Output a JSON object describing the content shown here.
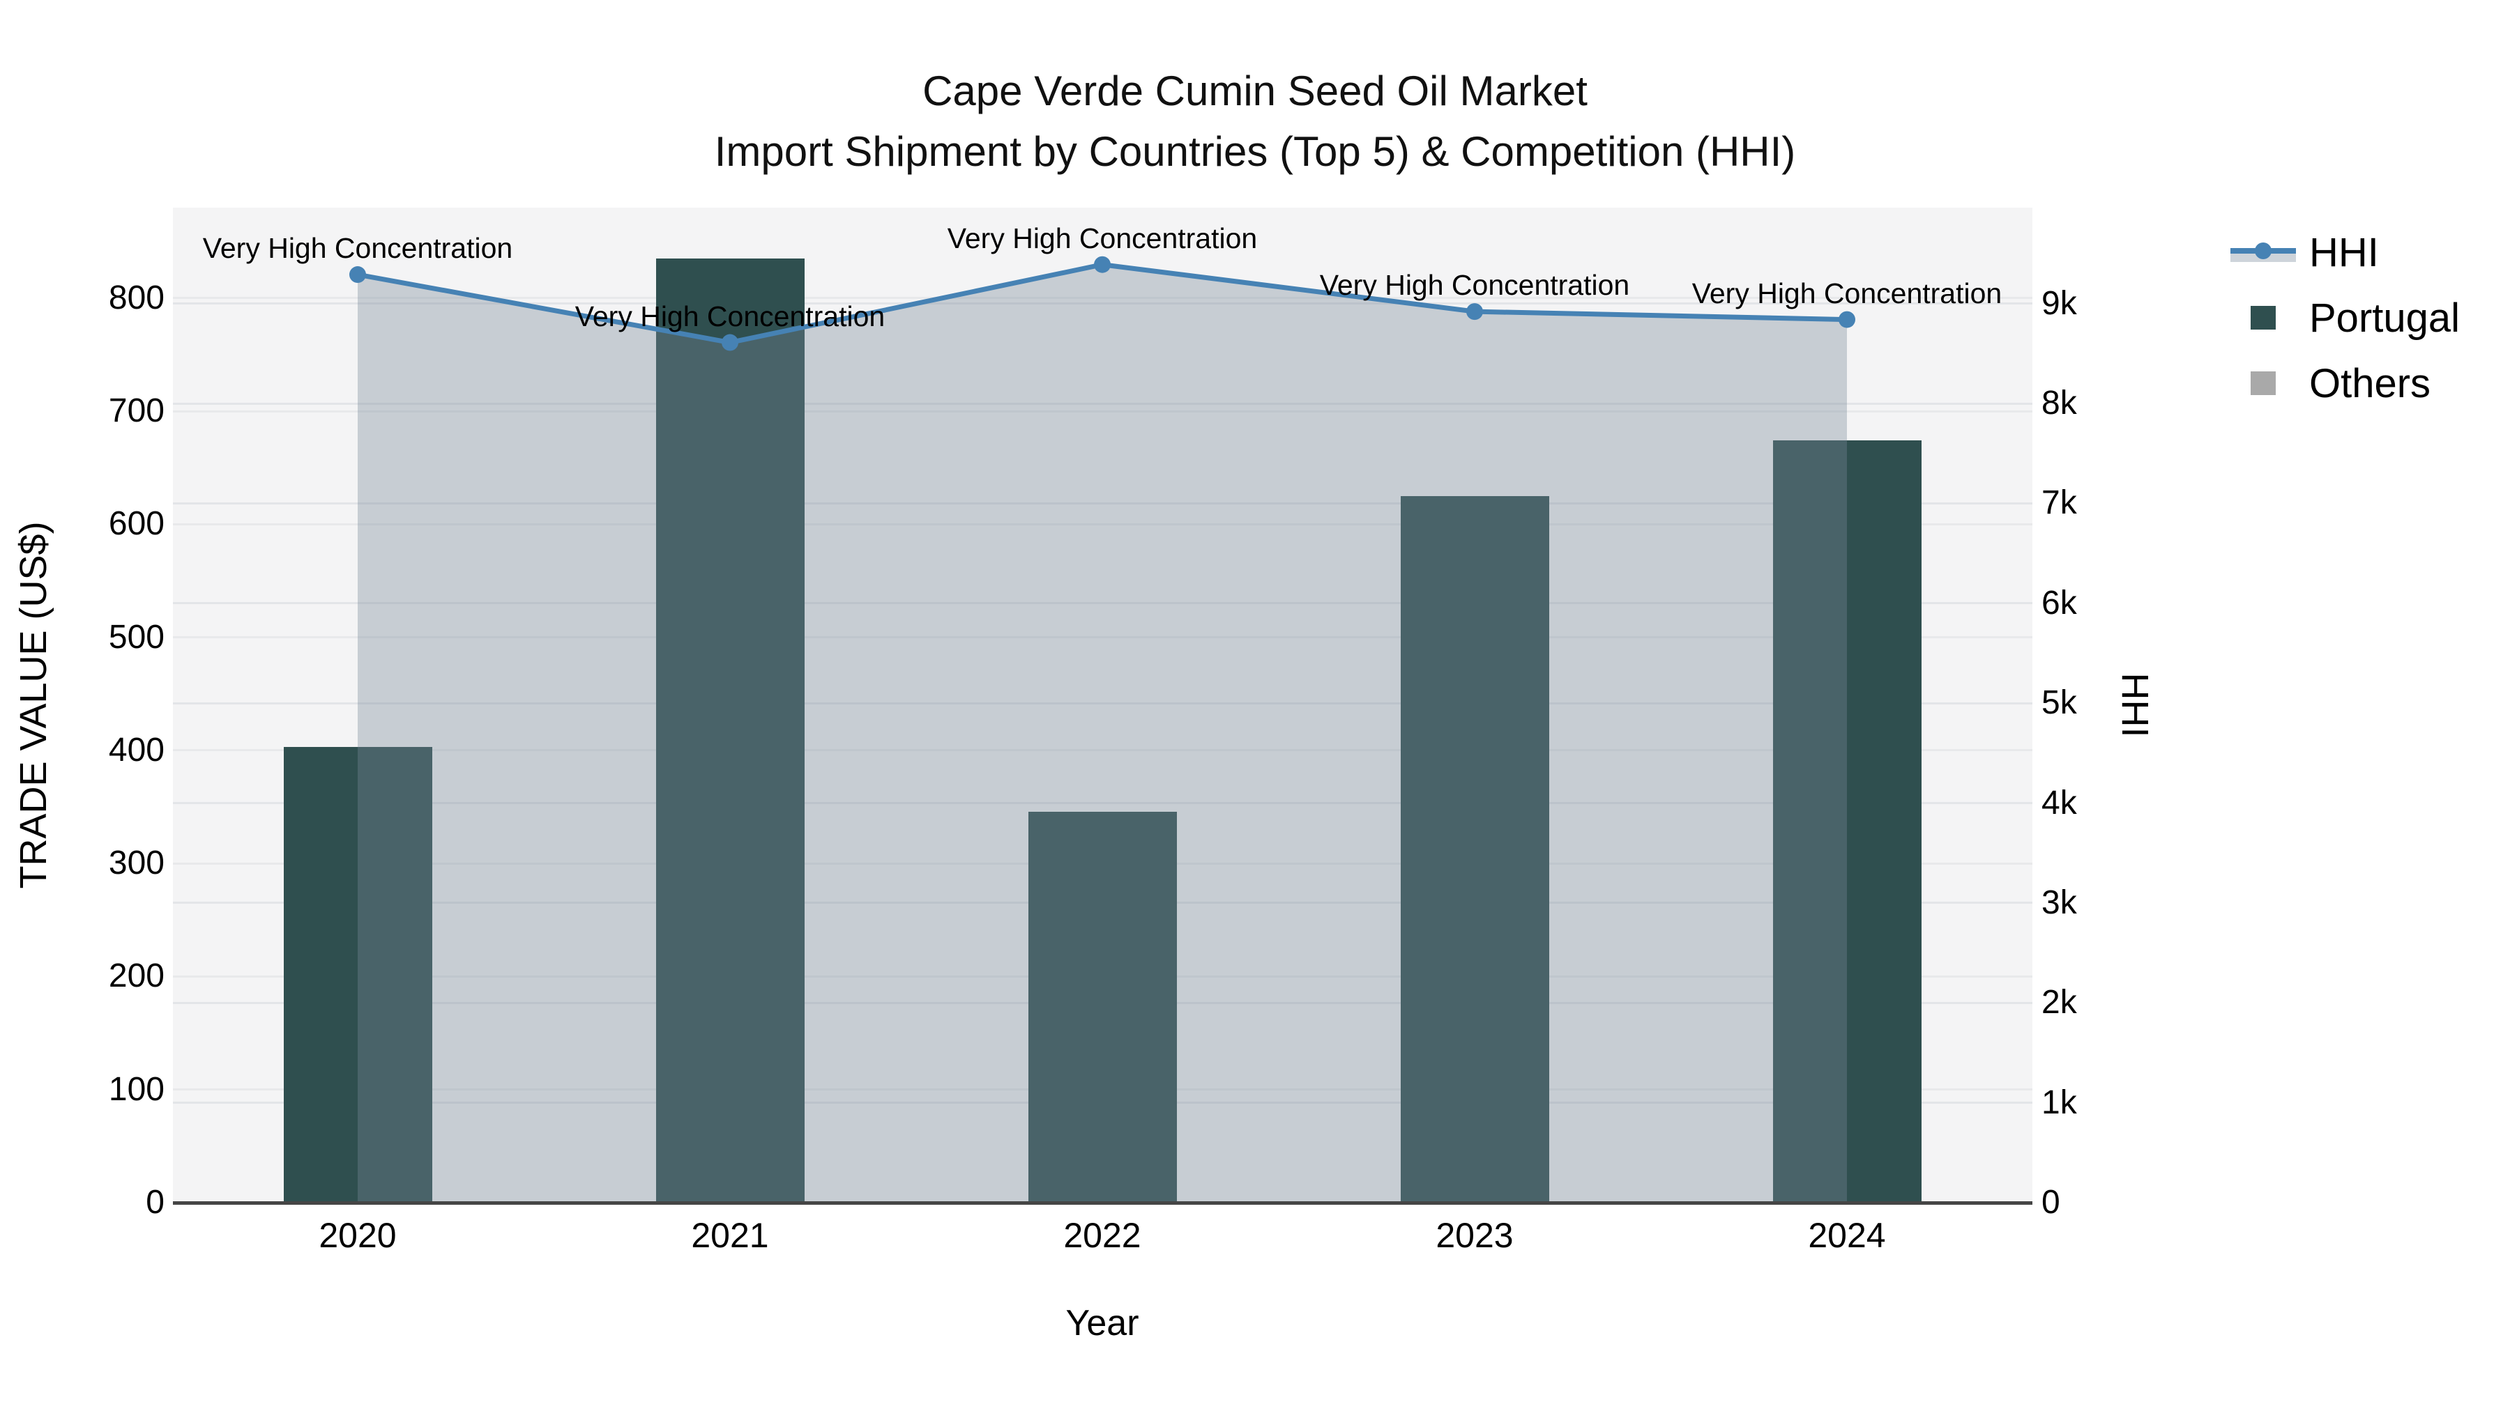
{
  "title": {
    "line1": "Cape Verde Cumin Seed Oil Market",
    "line2": "Import Shipment by Countries (Top 5) & Competition (HHI)"
  },
  "axes": {
    "left": {
      "title": "TRADE VALUE (US$)",
      "tick_labels": [
        "0",
        "100",
        "200",
        "300",
        "400",
        "500",
        "600",
        "700",
        "800"
      ],
      "tick_values": [
        0,
        100,
        200,
        300,
        400,
        500,
        600,
        700,
        800
      ],
      "max": 880
    },
    "right": {
      "title": "HHI",
      "tick_labels": [
        "0",
        "1k",
        "2k",
        "3k",
        "4k",
        "5k",
        "6k",
        "7k",
        "8k",
        "9k"
      ],
      "tick_values": [
        0,
        1000,
        2000,
        3000,
        4000,
        5000,
        6000,
        7000,
        8000,
        9000
      ],
      "max": 9960
    },
    "x": {
      "title": "Year",
      "categories": [
        "2020",
        "2021",
        "2022",
        "2023",
        "2024"
      ]
    }
  },
  "legend": {
    "items": [
      {
        "label": "HHI",
        "type": "line",
        "color": "#4682B4"
      },
      {
        "label": "Portugal",
        "type": "bar",
        "color": "#2F4F4F"
      },
      {
        "label": "Others",
        "type": "bar",
        "color": "#A9A9A9"
      }
    ]
  },
  "chart_data": {
    "type": "bar+line",
    "title": "Cape Verde Cumin Seed Oil Market — Import Shipment by Countries (Top 5) & Competition (HHI)",
    "xlabel": "Year",
    "ylabel_left": "TRADE VALUE (US$)",
    "ylabel_right": "HHI",
    "categories": [
      "2020",
      "2021",
      "2022",
      "2023",
      "2024"
    ],
    "series": [
      {
        "name": "Portugal",
        "type": "bar",
        "axis": "left",
        "color": "#2F4F4F",
        "values": [
          403,
          835,
          346,
          625,
          674
        ]
      },
      {
        "name": "Others",
        "type": "bar",
        "axis": "left",
        "color": "#A9A9A9",
        "values": [
          0,
          0,
          0,
          0,
          0
        ]
      },
      {
        "name": "HHI",
        "type": "line",
        "axis": "right",
        "color": "#4682B4",
        "fill_color": "rgba(119,136,153,0.36)",
        "values": [
          9290,
          8610,
          9390,
          8920,
          8840
        ]
      }
    ],
    "annotations": [
      {
        "x": "2020",
        "text": "Very High Concentration"
      },
      {
        "x": "2021",
        "text": "Very High Concentration"
      },
      {
        "x": "2022",
        "text": "Very High Concentration"
      },
      {
        "x": "2023",
        "text": "Very High Concentration"
      },
      {
        "x": "2024",
        "text": "Very High Concentration"
      }
    ],
    "ylim_left": [
      0,
      880
    ],
    "ylim_right": [
      0,
      9960
    ],
    "grid": true,
    "legend_position": "right",
    "plot_bg": "#F4F4F5"
  },
  "colors": {
    "plot_bg": "#F4F4F5",
    "grid_left": "#E8E9EB",
    "grid_right": "#E3E5E8",
    "zero_line": "#454545",
    "hhi_line": "#4682B4",
    "hhi_fill": "rgba(119,136,153,0.36)",
    "portugal_bar": "#2F4F4F",
    "others_bar": "#A9A9A9"
  }
}
